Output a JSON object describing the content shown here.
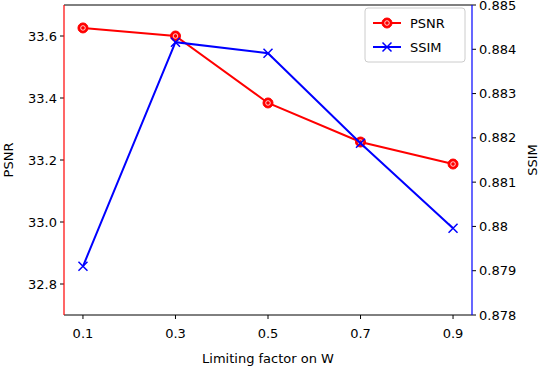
{
  "chart_data": {
    "type": "line",
    "x_label": "Limiting factor on W",
    "y_label": "PSNR",
    "y2_label": "SSIM",
    "x": [
      0.1,
      0.3,
      0.5,
      0.7,
      0.9
    ],
    "xlim": [
      0.059,
      0.941
    ],
    "xticks": [
      0.1,
      0.3,
      0.5,
      0.7,
      0.9
    ],
    "ylim": [
      32.7,
      33.7
    ],
    "yticks": [
      32.8,
      {
        "value": 33,
        "label": "33.0"
      },
      33.2,
      33.4,
      33.6
    ],
    "y2lim": [
      0.878,
      0.885
    ],
    "y2ticks": [
      0.878,
      0.879,
      0.88,
      0.881,
      0.882,
      0.883,
      0.884,
      0.885
    ],
    "grid": false,
    "legend": "upper right",
    "series": [
      {
        "name": "PSNR",
        "color": "#ff0000",
        "marker": "circle",
        "values": [
          33.626,
          33.6,
          33.384,
          33.258,
          33.187
        ]
      },
      {
        "name": "SSIM",
        "color": "#0000ff",
        "marker": "x",
        "axis": "y2",
        "values": [
          0.8791,
          0.88416,
          0.88391,
          0.88188,
          0.87996
        ]
      }
    ]
  }
}
